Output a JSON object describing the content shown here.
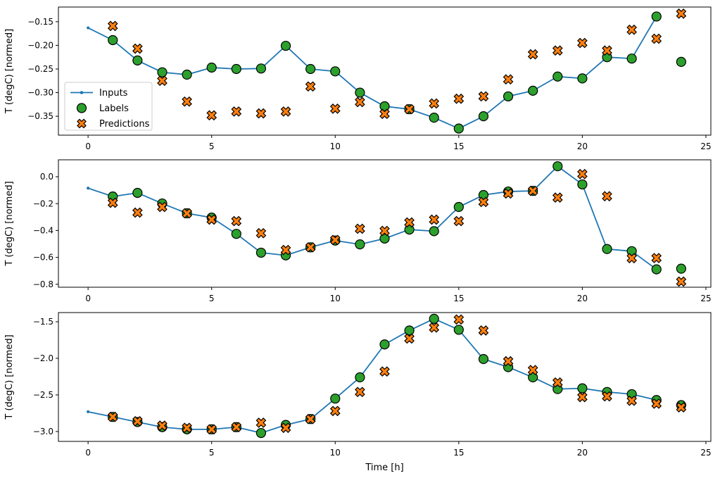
{
  "figure": {
    "background": "#ffffff",
    "xlabel": "Time [h]",
    "ylabel": "T (degC) [normed]",
    "xlim": [
      -1.2,
      25.2
    ],
    "xticks": [
      0,
      5,
      10,
      15,
      20,
      25
    ],
    "xtick_labels": [
      "0",
      "5",
      "10",
      "15",
      "20",
      "25"
    ]
  },
  "legend": {
    "position": "upper-left-of-first-subplot",
    "entries": [
      {
        "label": "Inputs",
        "marker": "line-dot",
        "color": "#1f77b4"
      },
      {
        "label": "Labels",
        "marker": "circle",
        "color": "#2ca02c"
      },
      {
        "label": "Predictions",
        "marker": "x-filled",
        "color": "#ff7f0e"
      }
    ]
  },
  "colors": {
    "inputs_line": "#1f77b4",
    "labels_fill": "#2ca02c",
    "predictions_fill": "#ff7f0e",
    "marker_edge": "#000000",
    "spine": "#000000",
    "legend_border": "#cccccc"
  },
  "chart_data": [
    {
      "type": "line",
      "subplot": 1,
      "ylabel": "T (degC) [normed]",
      "ylim": [
        -0.39,
        -0.119
      ],
      "yticks": [
        -0.15,
        -0.2,
        -0.25,
        -0.3,
        -0.35
      ],
      "ytick_labels": [
        "−0.15",
        "−0.20",
        "−0.25",
        "−0.30",
        "−0.35"
      ],
      "grid": false,
      "series": [
        {
          "name": "Inputs",
          "style": "line-dot",
          "x": [
            0,
            1,
            2,
            3,
            4,
            5,
            6,
            7,
            8,
            9,
            10,
            11,
            12,
            13,
            14,
            15,
            16,
            17,
            18,
            19,
            20,
            21,
            22,
            23
          ],
          "y": [
            -0.163,
            -0.189,
            -0.232,
            -0.257,
            -0.262,
            -0.247,
            -0.25,
            -0.249,
            -0.201,
            -0.25,
            -0.255,
            -0.3,
            -0.329,
            -0.335,
            -0.353,
            -0.376,
            -0.35,
            -0.308,
            -0.296,
            -0.266,
            -0.27,
            -0.225,
            -0.228,
            -0.139
          ]
        },
        {
          "name": "Labels",
          "style": "scatter-circle",
          "x": [
            1,
            2,
            3,
            4,
            5,
            6,
            7,
            8,
            9,
            10,
            11,
            12,
            13,
            14,
            15,
            16,
            17,
            18,
            19,
            20,
            21,
            22,
            23,
            24
          ],
          "y": [
            -0.189,
            -0.232,
            -0.257,
            -0.262,
            -0.247,
            -0.25,
            -0.249,
            -0.201,
            -0.25,
            -0.255,
            -0.3,
            -0.329,
            -0.335,
            -0.353,
            -0.376,
            -0.35,
            -0.308,
            -0.296,
            -0.266,
            -0.27,
            -0.225,
            -0.228,
            -0.139,
            -0.235
          ]
        },
        {
          "name": "Predictions",
          "style": "scatter-x",
          "x": [
            1,
            2,
            3,
            4,
            5,
            6,
            7,
            8,
            9,
            10,
            11,
            12,
            13,
            14,
            15,
            16,
            17,
            18,
            19,
            20,
            21,
            22,
            23,
            24
          ],
          "y": [
            -0.159,
            -0.207,
            -0.275,
            -0.319,
            -0.348,
            -0.34,
            -0.344,
            -0.34,
            -0.287,
            -0.334,
            -0.32,
            -0.345,
            -0.335,
            -0.323,
            -0.313,
            -0.308,
            -0.272,
            -0.219,
            -0.211,
            -0.195,
            -0.211,
            -0.167,
            -0.186,
            -0.133
          ]
        }
      ]
    },
    {
      "type": "line",
      "subplot": 2,
      "ylabel": "T (degC) [normed]",
      "ylim": [
        -0.822,
        0.126
      ],
      "yticks": [
        0.0,
        -0.2,
        -0.4,
        -0.6,
        -0.8
      ],
      "ytick_labels": [
        "0.0",
        "−0.2",
        "−0.4",
        "−0.6",
        "−0.8"
      ],
      "grid": false,
      "series": [
        {
          "name": "Inputs",
          "style": "line-dot",
          "x": [
            0,
            1,
            2,
            3,
            4,
            5,
            6,
            7,
            8,
            9,
            10,
            11,
            12,
            13,
            14,
            15,
            16,
            17,
            18,
            19,
            20,
            21,
            22,
            23
          ],
          "y": [
            -0.085,
            -0.147,
            -0.12,
            -0.199,
            -0.272,
            -0.304,
            -0.425,
            -0.565,
            -0.585,
            -0.525,
            -0.475,
            -0.503,
            -0.46,
            -0.393,
            -0.405,
            -0.225,
            -0.136,
            -0.11,
            -0.105,
            0.078,
            -0.057,
            -0.538,
            -0.554,
            -0.689
          ]
        },
        {
          "name": "Labels",
          "style": "scatter-circle",
          "x": [
            1,
            2,
            3,
            4,
            5,
            6,
            7,
            8,
            9,
            10,
            11,
            12,
            13,
            14,
            15,
            16,
            17,
            18,
            19,
            20,
            21,
            22,
            23,
            24
          ],
          "y": [
            -0.147,
            -0.12,
            -0.199,
            -0.272,
            -0.304,
            -0.425,
            -0.565,
            -0.585,
            -0.525,
            -0.475,
            -0.503,
            -0.46,
            -0.393,
            -0.405,
            -0.225,
            -0.136,
            -0.11,
            -0.105,
            0.078,
            -0.057,
            -0.538,
            -0.554,
            -0.689,
            -0.684
          ]
        },
        {
          "name": "Predictions",
          "style": "scatter-x",
          "x": [
            1,
            2,
            3,
            4,
            5,
            6,
            7,
            8,
            9,
            10,
            11,
            12,
            13,
            14,
            15,
            16,
            17,
            18,
            19,
            20,
            21,
            22,
            23,
            24
          ],
          "y": [
            -0.194,
            -0.267,
            -0.225,
            -0.272,
            -0.319,
            -0.33,
            -0.42,
            -0.545,
            -0.525,
            -0.47,
            -0.387,
            -0.403,
            -0.34,
            -0.319,
            -0.33,
            -0.188,
            -0.125,
            -0.105,
            -0.155,
            0.02,
            -0.145,
            -0.606,
            -0.605,
            -0.78
          ]
        }
      ]
    },
    {
      "type": "line",
      "subplot": 3,
      "ylabel": "T (degC) [normed]",
      "ylim": [
        -3.135,
        -1.375
      ],
      "yticks": [
        -1.5,
        -2.0,
        -2.5,
        -3.0
      ],
      "ytick_labels": [
        "−1.5",
        "−2.0",
        "−2.5",
        "−3.0"
      ],
      "grid": false,
      "series": [
        {
          "name": "Inputs",
          "style": "line-dot",
          "x": [
            0,
            1,
            2,
            3,
            4,
            5,
            6,
            7,
            8,
            9,
            10,
            11,
            12,
            13,
            14,
            15,
            16,
            17,
            18,
            19,
            20,
            21,
            22,
            23
          ],
          "y": [
            -2.73,
            -2.8,
            -2.87,
            -2.94,
            -2.97,
            -2.97,
            -2.94,
            -3.02,
            -2.91,
            -2.83,
            -2.55,
            -2.26,
            -1.81,
            -1.62,
            -1.46,
            -1.61,
            -2.01,
            -2.12,
            -2.26,
            -2.42,
            -2.41,
            -2.46,
            -2.49,
            -2.57
          ]
        },
        {
          "name": "Labels",
          "style": "scatter-circle",
          "x": [
            1,
            2,
            3,
            4,
            5,
            6,
            7,
            8,
            9,
            10,
            11,
            12,
            13,
            14,
            15,
            16,
            17,
            18,
            19,
            20,
            21,
            22,
            23,
            24
          ],
          "y": [
            -2.8,
            -2.87,
            -2.94,
            -2.97,
            -2.97,
            -2.94,
            -3.02,
            -2.91,
            -2.83,
            -2.55,
            -2.26,
            -1.81,
            -1.62,
            -1.46,
            -1.61,
            -2.01,
            -2.12,
            -2.26,
            -2.42,
            -2.41,
            -2.46,
            -2.49,
            -2.57,
            -2.64
          ]
        },
        {
          "name": "Predictions",
          "style": "scatter-x",
          "x": [
            1,
            2,
            3,
            4,
            5,
            6,
            7,
            8,
            9,
            10,
            11,
            12,
            13,
            14,
            15,
            16,
            17,
            18,
            19,
            20,
            21,
            22,
            23,
            24
          ],
          "y": [
            -2.8,
            -2.86,
            -2.92,
            -2.95,
            -2.97,
            -2.94,
            -2.88,
            -2.95,
            -2.83,
            -2.72,
            -2.46,
            -2.18,
            -1.73,
            -1.58,
            -1.47,
            -1.62,
            -2.04,
            -2.16,
            -2.33,
            -2.53,
            -2.52,
            -2.58,
            -2.62,
            -2.67
          ]
        }
      ]
    }
  ]
}
